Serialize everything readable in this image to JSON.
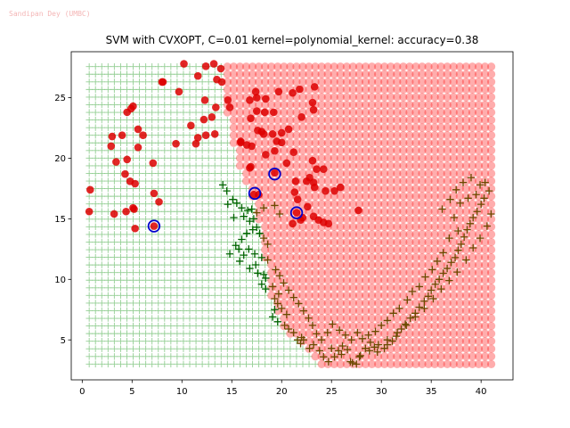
{
  "watermark": "Sandipan Dey (UMBC)",
  "chart_data": {
    "type": "scatter",
    "title": "SVM with CVXOPT, C=0.01 kernel=polynomial_kernel: accuracy=0.38",
    "xlabel": "",
    "ylabel": "",
    "xlim": [
      -1.1,
      43.2
    ],
    "ylim": [
      1.7,
      28.8
    ],
    "xticks": [
      0,
      5,
      10,
      15,
      20,
      25,
      30,
      35,
      40
    ],
    "yticks": [
      5,
      10,
      15,
      20,
      25
    ],
    "grid": false,
    "legend": "none",
    "colors": {
      "region_pos": "#ff0000",
      "region_neg": "#2ca02c",
      "class_pos": "#dd0000",
      "class_neg": "#006400",
      "class_neg_far": "#6b4a00",
      "support_vector": "#0000cc"
    },
    "decision_region": {
      "grid_x_range": [
        0.7,
        41.3
      ],
      "grid_y_range": [
        3.0,
        27.8
      ],
      "grid_step": 0.63,
      "boundary_x": [
        [
          3.0,
          23.9
        ],
        [
          4.0,
          22.7
        ],
        [
          5.0,
          21.4
        ],
        [
          6.0,
          20.3
        ],
        [
          7.0,
          19.7
        ],
        [
          8.0,
          19.2
        ],
        [
          9.0,
          18.8
        ],
        [
          10.0,
          18.6
        ],
        [
          11.0,
          18.4
        ],
        [
          12.0,
          18.2
        ],
        [
          13.0,
          18.0
        ],
        [
          14.0,
          17.8
        ],
        [
          15.0,
          17.6
        ],
        [
          16.0,
          17.2
        ],
        [
          17.0,
          16.7
        ],
        [
          18.0,
          16.2
        ],
        [
          19.0,
          15.8
        ],
        [
          20.0,
          15.4
        ],
        [
          21.0,
          15.1
        ],
        [
          22.0,
          14.9
        ],
        [
          23.0,
          14.7
        ],
        [
          24.0,
          14.5
        ],
        [
          25.0,
          14.4
        ],
        [
          26.0,
          14.3
        ],
        [
          27.0,
          14.2
        ],
        [
          28.0,
          14.2
        ]
      ]
    },
    "series": [
      {
        "label": "positive class",
        "marker": "circle",
        "points": [
          [
            0.8,
            17.4
          ],
          [
            0.7,
            15.6
          ],
          [
            3.2,
            15.4
          ],
          [
            4.4,
            15.6
          ],
          [
            5.3,
            14.2
          ],
          [
            5.2,
            15.8
          ],
          [
            5.1,
            15.9
          ],
          [
            7.2,
            14.4
          ],
          [
            7.7,
            16.4
          ],
          [
            7.2,
            17.1
          ],
          [
            5.3,
            17.9
          ],
          [
            4.8,
            18.1
          ],
          [
            4.3,
            18.7
          ],
          [
            4.5,
            19.9
          ],
          [
            3.4,
            19.7
          ],
          [
            5.6,
            20.9
          ],
          [
            7.1,
            19.6
          ],
          [
            2.9,
            21.0
          ],
          [
            3.0,
            21.8
          ],
          [
            4.0,
            21.9
          ],
          [
            5.6,
            22.4
          ],
          [
            6.1,
            21.9
          ],
          [
            4.5,
            23.8
          ],
          [
            5.1,
            24.3
          ],
          [
            4.9,
            24.1
          ],
          [
            9.4,
            21.2
          ],
          [
            11.4,
            21.2
          ],
          [
            11.6,
            21.7
          ],
          [
            12.4,
            21.9
          ],
          [
            13.3,
            22.0
          ],
          [
            12.2,
            23.2
          ],
          [
            13.0,
            23.4
          ],
          [
            13.4,
            24.2
          ],
          [
            12.3,
            24.8
          ],
          [
            14.8,
            24.2
          ],
          [
            14.6,
            24.8
          ],
          [
            10.9,
            22.7
          ],
          [
            9.7,
            25.5
          ],
          [
            8.1,
            26.3
          ],
          [
            8.0,
            26.3
          ],
          [
            10.2,
            27.8
          ],
          [
            11.6,
            26.8
          ],
          [
            12.4,
            27.6
          ],
          [
            13.2,
            27.8
          ],
          [
            13.9,
            27.4
          ],
          [
            14.0,
            26.3
          ],
          [
            13.5,
            26.5
          ],
          [
            15.9,
            21.4
          ],
          [
            16.5,
            21.1
          ],
          [
            17.0,
            21.0
          ],
          [
            17.6,
            22.3
          ],
          [
            18.0,
            22.2
          ],
          [
            18.2,
            22.0
          ],
          [
            19.1,
            22.0
          ],
          [
            19.5,
            21.4
          ],
          [
            19.3,
            20.6
          ],
          [
            20.0,
            21.3
          ],
          [
            20.7,
            22.4
          ],
          [
            21.2,
            20.5
          ],
          [
            20.5,
            19.6
          ],
          [
            18.4,
            20.3
          ],
          [
            16.8,
            19.2
          ],
          [
            16.9,
            19.3
          ],
          [
            17.2,
            17.0
          ],
          [
            17.7,
            17.0
          ],
          [
            16.9,
            23.3
          ],
          [
            17.5,
            23.9
          ],
          [
            18.3,
            23.8
          ],
          [
            16.8,
            24.8
          ],
          [
            17.5,
            25.0
          ],
          [
            17.4,
            25.5
          ],
          [
            18.4,
            24.9
          ],
          [
            19.2,
            23.8
          ],
          [
            19.7,
            25.5
          ],
          [
            21.1,
            25.4
          ],
          [
            21.8,
            25.7
          ],
          [
            23.2,
            24.0
          ],
          [
            23.1,
            24.6
          ],
          [
            23.3,
            25.9
          ],
          [
            22.0,
            23.4
          ],
          [
            20.0,
            22.1
          ],
          [
            19.3,
            18.8
          ],
          [
            21.4,
            18.1
          ],
          [
            21.3,
            17.2
          ],
          [
            21.6,
            16.6
          ],
          [
            22.5,
            18.1
          ],
          [
            22.8,
            18.4
          ],
          [
            23.2,
            18.0
          ],
          [
            23.5,
            19.1
          ],
          [
            23.1,
            19.8
          ],
          [
            24.2,
            19.1
          ],
          [
            24.4,
            17.3
          ],
          [
            25.3,
            17.3
          ],
          [
            25.9,
            17.6
          ],
          [
            23.3,
            17.6
          ],
          [
            22.6,
            16.0
          ],
          [
            22.1,
            15.1
          ],
          [
            23.2,
            15.2
          ],
          [
            23.7,
            14.9
          ],
          [
            24.2,
            14.7
          ],
          [
            24.7,
            14.6
          ],
          [
            21.5,
            15.5
          ],
          [
            21.1,
            14.6
          ],
          [
            21.9,
            14.9
          ],
          [
            27.7,
            15.7
          ],
          [
            15.9,
            21.3
          ]
        ]
      },
      {
        "label": "negative class",
        "marker": "plus",
        "points": [
          [
            14.1,
            17.8
          ],
          [
            14.5,
            17.3
          ],
          [
            15.1,
            16.6
          ],
          [
            14.6,
            16.2
          ],
          [
            15.5,
            16.3
          ],
          [
            16.0,
            15.9
          ],
          [
            16.6,
            15.7
          ],
          [
            17.0,
            15.8
          ],
          [
            17.5,
            15.5
          ],
          [
            18.2,
            15.9
          ],
          [
            19.3,
            16.1
          ],
          [
            19.8,
            15.4
          ],
          [
            15.2,
            15.1
          ],
          [
            16.2,
            15.2
          ],
          [
            16.8,
            14.8
          ],
          [
            17.2,
            15.0
          ],
          [
            17.5,
            14.3
          ],
          [
            17.8,
            13.8
          ],
          [
            18.2,
            13.4
          ],
          [
            18.6,
            12.9
          ],
          [
            17.1,
            14.1
          ],
          [
            16.5,
            13.8
          ],
          [
            16.0,
            13.3
          ],
          [
            15.4,
            12.8
          ],
          [
            16.7,
            12.5
          ],
          [
            17.3,
            12.1
          ],
          [
            18.0,
            11.8
          ],
          [
            18.6,
            11.6
          ],
          [
            17.4,
            11.2
          ],
          [
            16.2,
            12.0
          ],
          [
            15.7,
            12.5
          ],
          [
            14.8,
            12.1
          ],
          [
            15.8,
            11.5
          ],
          [
            16.8,
            10.9
          ],
          [
            17.6,
            10.5
          ],
          [
            18.2,
            10.4
          ],
          [
            18.4,
            10.1
          ],
          [
            18.0,
            9.6
          ],
          [
            18.4,
            9.2
          ],
          [
            19.1,
            9.4
          ],
          [
            19.7,
            8.8
          ],
          [
            19.3,
            8.4
          ],
          [
            19.6,
            8.0
          ],
          [
            20.0,
            7.6
          ],
          [
            20.5,
            7.1
          ],
          [
            19.3,
            7.5
          ],
          [
            19.1,
            6.9
          ],
          [
            19.6,
            6.5
          ],
          [
            20.3,
            6.2
          ],
          [
            20.7,
            5.9
          ],
          [
            21.2,
            5.6
          ],
          [
            21.6,
            5.0
          ],
          [
            21.9,
            4.7
          ],
          [
            22.0,
            5.2
          ],
          [
            22.2,
            5.0
          ],
          [
            22.8,
            4.3
          ],
          [
            23.2,
            4.6
          ],
          [
            23.8,
            4.1
          ],
          [
            24.2,
            3.6
          ],
          [
            24.7,
            3.2
          ],
          [
            25.3,
            3.6
          ],
          [
            25.7,
            4.1
          ],
          [
            26.1,
            4.5
          ],
          [
            26.6,
            4.2
          ],
          [
            27.1,
            3.1
          ],
          [
            27.5,
            3.0
          ],
          [
            27.9,
            3.7
          ],
          [
            28.4,
            4.3
          ],
          [
            28.9,
            4.8
          ],
          [
            29.3,
            4.4
          ],
          [
            29.6,
            4.0
          ],
          [
            30.3,
            4.3
          ],
          [
            30.6,
            4.6
          ],
          [
            31.1,
            4.9
          ],
          [
            31.5,
            5.3
          ],
          [
            32.0,
            5.9
          ],
          [
            32.4,
            6.3
          ],
          [
            32.9,
            6.8
          ],
          [
            33.4,
            7.2
          ],
          [
            33.8,
            7.7
          ],
          [
            34.3,
            8.2
          ],
          [
            34.7,
            8.6
          ],
          [
            35.0,
            9.1
          ],
          [
            35.4,
            9.6
          ],
          [
            35.8,
            10.0
          ],
          [
            36.2,
            10.5
          ],
          [
            36.6,
            10.9
          ],
          [
            37.0,
            11.4
          ],
          [
            37.4,
            11.8
          ],
          [
            37.7,
            12.4
          ],
          [
            38.0,
            12.9
          ],
          [
            38.3,
            13.5
          ],
          [
            38.6,
            14.1
          ],
          [
            38.9,
            14.6
          ],
          [
            39.2,
            15.1
          ],
          [
            39.6,
            15.6
          ],
          [
            40.0,
            16.2
          ],
          [
            40.3,
            16.7
          ],
          [
            40.8,
            17.3
          ],
          [
            39.5,
            17.0
          ],
          [
            39.9,
            17.8
          ],
          [
            38.7,
            16.7
          ],
          [
            37.9,
            16.3
          ],
          [
            37.3,
            15.1
          ],
          [
            37.7,
            14.0
          ],
          [
            36.8,
            13.4
          ],
          [
            36.2,
            12.2
          ],
          [
            35.6,
            11.5
          ],
          [
            35.1,
            10.8
          ],
          [
            34.4,
            10.2
          ],
          [
            33.8,
            9.4
          ],
          [
            33.1,
            9.0
          ],
          [
            32.6,
            8.3
          ],
          [
            31.8,
            7.6
          ],
          [
            31.2,
            7.2
          ],
          [
            30.6,
            6.6
          ],
          [
            30.0,
            6.2
          ],
          [
            29.4,
            5.7
          ],
          [
            28.7,
            5.4
          ],
          [
            28.1,
            5.1
          ],
          [
            27.6,
            5.6
          ],
          [
            27.0,
            5.0
          ],
          [
            26.4,
            5.4
          ],
          [
            25.8,
            5.8
          ],
          [
            25.1,
            6.3
          ],
          [
            24.6,
            5.6
          ],
          [
            24.0,
            5.0
          ],
          [
            23.5,
            5.5
          ],
          [
            23.1,
            6.2
          ],
          [
            22.7,
            6.8
          ],
          [
            22.2,
            7.4
          ],
          [
            21.7,
            8.0
          ],
          [
            21.2,
            8.5
          ],
          [
            20.7,
            9.1
          ],
          [
            20.2,
            9.7
          ],
          [
            19.8,
            10.3
          ],
          [
            19.4,
            10.8
          ],
          [
            36.1,
            15.8
          ],
          [
            36.9,
            16.6
          ],
          [
            37.5,
            17.4
          ],
          [
            38.2,
            18.0
          ],
          [
            39.0,
            18.4
          ],
          [
            40.4,
            18.0
          ],
          [
            41.0,
            15.4
          ],
          [
            40.6,
            14.4
          ],
          [
            39.9,
            13.4
          ],
          [
            39.2,
            12.6
          ],
          [
            38.5,
            11.6
          ],
          [
            37.6,
            10.6
          ],
          [
            36.8,
            9.9
          ],
          [
            36.0,
            9.2
          ],
          [
            35.2,
            8.4
          ],
          [
            34.3,
            7.6
          ],
          [
            33.4,
            6.9
          ],
          [
            32.5,
            6.2
          ],
          [
            31.6,
            5.6
          ],
          [
            30.6,
            5.0
          ],
          [
            29.7,
            4.6
          ],
          [
            28.8,
            4.1
          ],
          [
            27.8,
            3.6
          ],
          [
            26.9,
            3.2
          ],
          [
            26.0,
            3.8
          ],
          [
            25.0,
            4.3
          ]
        ]
      },
      {
        "label": "support vectors",
        "marker": "ring",
        "points": [
          [
            7.2,
            14.4
          ],
          [
            17.3,
            17.1
          ],
          [
            19.3,
            18.7
          ],
          [
            21.5,
            15.5
          ]
        ]
      }
    ]
  }
}
